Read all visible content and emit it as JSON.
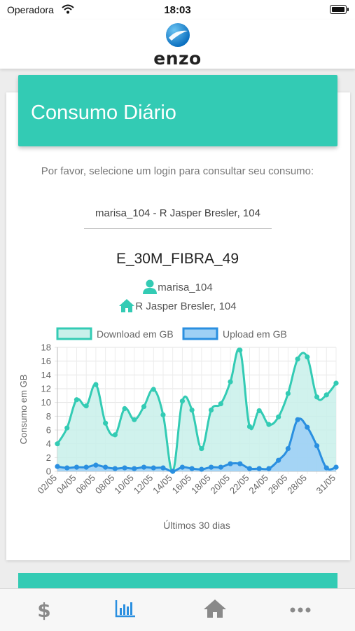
{
  "status_bar": {
    "carrier": "Operadora",
    "time": "18:03"
  },
  "header": {
    "logo_text": "enzo"
  },
  "card": {
    "title": "Consumo Diário",
    "prompt": "Por favor, selecione um login para consultar seu consumo:",
    "selected_login": "marisa_104 - R Jasper Bresler, 104",
    "plan_name": "E_30M_FIBRA_49",
    "user": "marisa_104",
    "address": "R Jasper Bresler, 104"
  },
  "colors": {
    "accent": "#33cbb4",
    "upload": "#2a8fe0"
  },
  "chart_data": {
    "type": "line",
    "title": "",
    "xlabel": "Últimos 30 dias",
    "ylabel": "Consumo em GB",
    "ylim": [
      0,
      18
    ],
    "yticks": [
      0,
      2,
      4,
      6,
      8,
      10,
      12,
      14,
      16,
      18
    ],
    "grid": true,
    "legend_position": "top",
    "x": [
      "02/05",
      "03/05",
      "04/05",
      "05/05",
      "06/05",
      "07/05",
      "08/05",
      "09/05",
      "10/05",
      "11/05",
      "12/05",
      "13/05",
      "14/05",
      "15/05",
      "16/05",
      "17/05",
      "18/05",
      "19/05",
      "20/05",
      "21/05",
      "22/05",
      "23/05",
      "24/05",
      "25/05",
      "26/05",
      "27/05",
      "28/05",
      "29/05",
      "30/05",
      "31/05"
    ],
    "x_tick_labels": [
      "02/05",
      "04/05",
      "06/05",
      "08/05",
      "10/05",
      "12/05",
      "14/05",
      "16/05",
      "18/05",
      "20/05",
      "22/05",
      "24/05",
      "26/05",
      "28/05",
      "31/05"
    ],
    "series": [
      {
        "name": "Download em GB",
        "color": "#33cbb4",
        "fill": "#c8f0ea",
        "values": [
          4.0,
          6.3,
          10.4,
          9.5,
          12.6,
          7.0,
          5.3,
          9.1,
          7.5,
          9.4,
          11.9,
          8.2,
          0.0,
          10.2,
          8.9,
          3.3,
          8.9,
          9.8,
          13.0,
          17.6,
          6.5,
          8.8,
          6.8,
          7.9,
          11.3,
          16.3,
          16.6,
          10.8,
          11.1,
          12.8
        ]
      },
      {
        "name": "Upload em GB",
        "color": "#2a8fe0",
        "fill": "#9ed0f5",
        "values": [
          0.7,
          0.5,
          0.6,
          0.6,
          0.9,
          0.6,
          0.4,
          0.5,
          0.4,
          0.6,
          0.5,
          0.5,
          0.0,
          0.6,
          0.4,
          0.3,
          0.6,
          0.6,
          1.1,
          1.1,
          0.4,
          0.4,
          0.4,
          1.6,
          3.3,
          7.5,
          6.4,
          3.7,
          0.5,
          0.6
        ]
      }
    ]
  },
  "tabs": [
    {
      "icon": "dollar-icon",
      "active": false
    },
    {
      "icon": "bar-chart-icon",
      "active": true
    },
    {
      "icon": "home-icon",
      "active": false
    },
    {
      "icon": "more-icon",
      "active": false
    }
  ]
}
